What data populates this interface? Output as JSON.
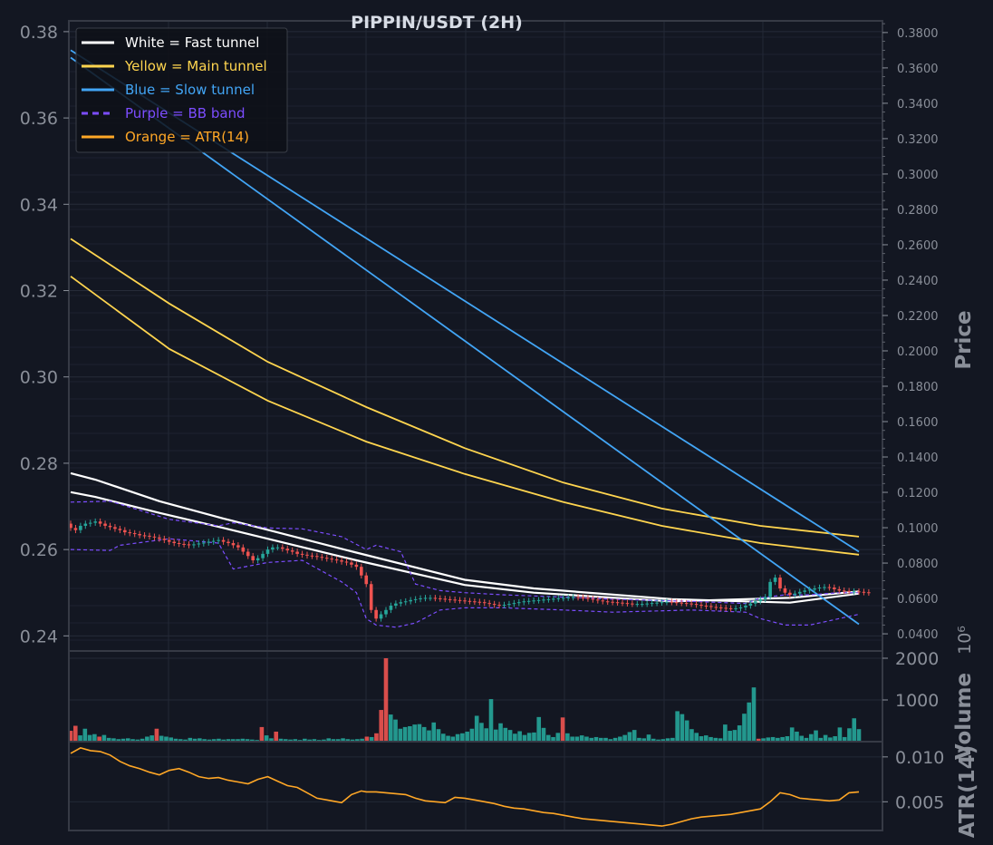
{
  "chart_data": [
    {
      "type": "line",
      "panel": "price",
      "title": "PIPPIN/USDT (2H)",
      "ylabel": "Price",
      "ylim": [
        0.2365,
        0.3825
      ],
      "y_ticks": [
        0.24,
        0.26,
        0.28,
        0.3,
        0.32,
        0.34,
        0.36,
        0.38
      ],
      "y_tick_labels": [
        "0.24",
        "0.26",
        "0.28",
        "0.30",
        "0.32",
        "0.34",
        "0.36",
        "0.38"
      ],
      "right_ylim": [
        0.0303,
        0.3866
      ],
      "right_ticks": [
        0.04,
        0.06,
        0.08,
        0.1,
        0.12,
        0.14,
        0.16,
        0.18,
        0.2,
        0.22,
        0.24,
        0.26,
        0.28,
        0.3,
        0.32,
        0.34,
        0.36,
        0.38
      ],
      "right_tick_labels": [
        "0.0400",
        "0.0600",
        "0.0800",
        "0.1000",
        "0.1200",
        "0.1400",
        "0.1600",
        "0.1800",
        "0.2000",
        "0.2200",
        "0.2400",
        "0.2600",
        "0.2800",
        "0.3000",
        "0.3200",
        "0.3400",
        "0.3600",
        "0.3800"
      ],
      "x_range": [
        0,
        160
      ],
      "legend": {
        "position": "top-left",
        "entries": [
          {
            "label": "White = Fast tunnel",
            "color": "#ffffff",
            "dash": false
          },
          {
            "label": "Yellow = Main tunnel",
            "color": "#ffd54f",
            "dash": false
          },
          {
            "label": "Blue = Slow tunnel",
            "color": "#42a5f5",
            "dash": false
          },
          {
            "label": "Purple = BB band",
            "color": "#7c4dff",
            "dash": true
          },
          {
            "label": "Orange = ATR(14)",
            "color": "#ffa726",
            "dash": false
          }
        ]
      },
      "series": [
        {
          "name": "Fast tunnel upper",
          "color": "#ffffff",
          "x": [
            0,
            5,
            18,
            31,
            58,
            80,
            94,
            122,
            146,
            160
          ],
          "values": [
            0.2777,
            0.2762,
            0.2712,
            0.2672,
            0.2593,
            0.253,
            0.251,
            0.2485,
            0.2477,
            0.2498
          ]
        },
        {
          "name": "Fast tunnel lower",
          "color": "#ffffff",
          "x": [
            0,
            5,
            18,
            31,
            58,
            80,
            94,
            122,
            146,
            160
          ],
          "values": [
            0.2733,
            0.2722,
            0.2685,
            0.265,
            0.2575,
            0.2518,
            0.25,
            0.248,
            0.2488,
            0.2503
          ]
        },
        {
          "name": "Main tunnel upper",
          "color": "#ffd54f",
          "x": [
            0,
            20,
            40,
            60,
            80,
            100,
            120,
            140,
            160
          ],
          "values": [
            0.332,
            0.317,
            0.3035,
            0.293,
            0.2835,
            0.2755,
            0.2695,
            0.2655,
            0.263
          ]
        },
        {
          "name": "Main tunnel lower",
          "color": "#ffd54f",
          "x": [
            0,
            20,
            40,
            60,
            80,
            100,
            120,
            140,
            160
          ],
          "values": [
            0.3233,
            0.3065,
            0.2945,
            0.285,
            0.2775,
            0.271,
            0.2655,
            0.2615,
            0.2588
          ]
        },
        {
          "name": "Slow tunnel upper",
          "color": "#42a5f5",
          "x": [
            0,
            160
          ],
          "values": [
            0.3757,
            0.2595
          ]
        },
        {
          "name": "Slow tunnel lower",
          "color": "#42a5f5",
          "x": [
            0,
            160
          ],
          "values": [
            0.374,
            0.2427
          ]
        },
        {
          "name": "BB upper",
          "color": "#7c4dff",
          "x": [
            0,
            8,
            20,
            30,
            33,
            40,
            47,
            55,
            60,
            62,
            67,
            70,
            75,
            80,
            88,
            100,
            110,
            126,
            137,
            140,
            145,
            150,
            156,
            160
          ],
          "values": [
            0.271,
            0.2712,
            0.267,
            0.2655,
            0.2662,
            0.265,
            0.2648,
            0.263,
            0.26,
            0.261,
            0.2595,
            0.252,
            0.2505,
            0.25,
            0.2495,
            0.249,
            0.2485,
            0.248,
            0.2475,
            0.2488,
            0.2495,
            0.2495,
            0.25,
            0.25
          ]
        },
        {
          "name": "BB lower",
          "color": "#7c4dff",
          "x": [
            0,
            8,
            10,
            20,
            30,
            33,
            40,
            47,
            55,
            58,
            60,
            62,
            66,
            70,
            75,
            80,
            88,
            100,
            110,
            126,
            137,
            140,
            145,
            150,
            156,
            160
          ],
          "values": [
            0.26,
            0.2598,
            0.261,
            0.2625,
            0.2615,
            0.2555,
            0.257,
            0.2575,
            0.2525,
            0.25,
            0.244,
            0.2425,
            0.242,
            0.243,
            0.246,
            0.2465,
            0.2465,
            0.246,
            0.2455,
            0.246,
            0.2455,
            0.244,
            0.2425,
            0.2425,
            0.244,
            0.245
          ]
        }
      ],
      "candles": {
        "up_color": "#26a69a",
        "down_color": "#ef5350",
        "close": [
          0.265,
          0.2645,
          0.2655,
          0.266,
          0.2662,
          0.2665,
          0.266,
          0.2655,
          0.2652,
          0.2648,
          0.2645,
          0.264,
          0.2638,
          0.2636,
          0.2633,
          0.2632,
          0.263,
          0.2628,
          0.2625,
          0.2622,
          0.2618,
          0.2615,
          0.2613,
          0.2612,
          0.261,
          0.2612,
          0.2614,
          0.2616,
          0.2618,
          0.262,
          0.2622,
          0.2618,
          0.2615,
          0.261,
          0.2605,
          0.2595,
          0.2585,
          0.2575,
          0.258,
          0.259,
          0.26,
          0.2605,
          0.2605,
          0.2602,
          0.2598,
          0.2595,
          0.259,
          0.2588,
          0.2586,
          0.2585,
          0.2583,
          0.2581,
          0.2579,
          0.2577,
          0.2575,
          0.2572,
          0.257,
          0.2565,
          0.256,
          0.254,
          0.252,
          0.246,
          0.244,
          0.245,
          0.246,
          0.247,
          0.2475,
          0.2478,
          0.248,
          0.2483,
          0.2485,
          0.2487,
          0.2488,
          0.2488,
          0.2487,
          0.2486,
          0.2485,
          0.2484,
          0.2483,
          0.2482,
          0.2481,
          0.248,
          0.2479,
          0.2478,
          0.2476,
          0.2474,
          0.2472,
          0.2471,
          0.2472,
          0.2474,
          0.2476,
          0.2478,
          0.248,
          0.2481,
          0.2482,
          0.2483,
          0.2484,
          0.2485,
          0.2486,
          0.2487,
          0.2488,
          0.2489,
          0.249,
          0.2489,
          0.2488,
          0.2486,
          0.2484,
          0.2482,
          0.248,
          0.2479,
          0.2478,
          0.2477,
          0.2476,
          0.2475,
          0.2474,
          0.2474,
          0.2474,
          0.2475,
          0.2476,
          0.2477,
          0.2478,
          0.2479,
          0.2478,
          0.2477,
          0.2476,
          0.2475,
          0.2474,
          0.2472,
          0.247,
          0.2469,
          0.2467,
          0.2466,
          0.2465,
          0.2464,
          0.2463,
          0.2464,
          0.2466,
          0.247,
          0.2475,
          0.248,
          0.2485,
          0.249,
          0.2525,
          0.2535,
          0.251,
          0.25,
          0.2495,
          0.2498,
          0.2502,
          0.2505,
          0.2507,
          0.251,
          0.2512,
          0.2513,
          0.2512,
          0.2508,
          0.2505,
          0.2504,
          0.2503,
          0.2503,
          0.2502,
          0.2501,
          0.25
        ]
      }
    },
    {
      "type": "bar",
      "panel": "volume",
      "ylabel": "Volume",
      "scale_label": "10⁶",
      "ylim": [
        0,
        2000
      ],
      "y_ticks": [
        1000,
        2000
      ],
      "y_tick_labels": [
        "1000",
        "2000"
      ],
      "values": [
        260,
        380,
        150,
        310,
        160,
        180,
        120,
        160,
        90,
        80,
        60,
        70,
        80,
        60,
        50,
        70,
        120,
        150,
        310,
        140,
        120,
        100,
        70,
        60,
        50,
        90,
        70,
        80,
        60,
        50,
        60,
        70,
        50,
        60,
        60,
        60,
        70,
        60,
        50,
        40,
        350,
        150,
        80,
        240,
        70,
        60,
        50,
        60,
        40,
        70,
        50,
        60,
        40,
        50,
        80,
        60,
        60,
        80,
        60,
        50,
        60,
        70,
        120,
        110,
        200,
        760,
        2000,
        650,
        530,
        310,
        350,
        370,
        410,
        420,
        350,
        270,
        460,
        300,
        190,
        140,
        120,
        180,
        200,
        240,
        310,
        620,
        450,
        320,
        1020,
        290,
        440,
        330,
        280,
        190,
        250,
        160,
        210,
        220,
        590,
        330,
        160,
        110,
        210,
        580,
        200,
        120,
        120,
        150,
        120,
        90,
        110,
        90,
        90,
        60,
        90,
        120,
        160,
        230,
        280,
        90,
        80,
        170,
        70,
        50,
        60,
        80,
        90,
        730,
        660,
        510,
        300,
        210,
        130,
        150,
        110,
        90,
        80,
        410,
        260,
        280,
        390,
        670,
        940,
        1300,
        70,
        80,
        100,
        110,
        90,
        110,
        130,
        340,
        240,
        140,
        90,
        180,
        270,
        90,
        160,
        100,
        130,
        340,
        110,
        320,
        560,
        300
      ],
      "colors": [
        "down",
        "down",
        "up",
        "up",
        "up",
        "up",
        "down",
        "up",
        "up",
        "up",
        "up",
        "up",
        "up",
        "up",
        "up",
        "up",
        "up",
        "up",
        "down",
        "up",
        "up",
        "up",
        "up",
        "up",
        "up",
        "up",
        "up",
        "up",
        "up",
        "up",
        "up",
        "up",
        "up",
        "up",
        "up",
        "up",
        "up",
        "up",
        "up",
        "up",
        "down",
        "up",
        "up",
        "down",
        "up",
        "up",
        "up",
        "up",
        "up",
        "up",
        "up",
        "up",
        "up",
        "up",
        "up",
        "up",
        "up",
        "up",
        "up",
        "up",
        "up",
        "up",
        "down",
        "up",
        "down",
        "down",
        "down",
        "up",
        "up",
        "up",
        "up",
        "up",
        "up",
        "up",
        "up",
        "up",
        "up",
        "up",
        "up",
        "up",
        "up",
        "up",
        "up",
        "up",
        "up",
        "up",
        "up",
        "up",
        "up",
        "up",
        "up",
        "up",
        "up",
        "up",
        "up",
        "up",
        "up",
        "up",
        "up",
        "up",
        "up",
        "up",
        "up",
        "down",
        "up",
        "up",
        "up",
        "up",
        "up",
        "up",
        "up",
        "up",
        "up",
        "up",
        "up",
        "up",
        "up",
        "up",
        "up",
        "up",
        "up",
        "up",
        "up",
        "up",
        "up",
        "up",
        "up",
        "up",
        "up",
        "up",
        "up",
        "up",
        "up",
        "up",
        "up",
        "up",
        "up",
        "up",
        "up",
        "up",
        "up",
        "up",
        "up",
        "up",
        "down",
        "up",
        "up",
        "up",
        "up",
        "up",
        "up",
        "up",
        "up",
        "up",
        "up",
        "up",
        "up",
        "up",
        "up",
        "up",
        "up",
        "up",
        "up",
        "up",
        "up",
        "up",
        "up",
        "up",
        "up",
        "down",
        "down",
        "up"
      ]
    },
    {
      "type": "line",
      "panel": "atr",
      "ylabel": "ATR(14)",
      "ylim": [
        0.0018,
        0.0117
      ],
      "y_ticks": [
        0.005,
        0.01
      ],
      "y_tick_labels": [
        "0.005",
        "0.010"
      ],
      "series": [
        {
          "name": "ATR(14)",
          "color": "#ffa726",
          "x": [
            0,
            2,
            4,
            6,
            8,
            10,
            12,
            14,
            16,
            18,
            20,
            22,
            24,
            26,
            28,
            30,
            32,
            34,
            36,
            38,
            40,
            42,
            44,
            46,
            48,
            50,
            52,
            54,
            55,
            57,
            59,
            60,
            62,
            64,
            66,
            68,
            70,
            72,
            74,
            76,
            78,
            80,
            82,
            84,
            86,
            88,
            90,
            92,
            94,
            96,
            98,
            100,
            102,
            104,
            106,
            108,
            110,
            112,
            114,
            116,
            118,
            120,
            122,
            124,
            126,
            128,
            130,
            132,
            134,
            136,
            138,
            140,
            142,
            144,
            146,
            148,
            150,
            152,
            154,
            156,
            158,
            160
          ],
          "values": [
            0.0104,
            0.011,
            0.0107,
            0.0106,
            0.0102,
            0.0095,
            0.009,
            0.0087,
            0.0083,
            0.008,
            0.0085,
            0.0087,
            0.0083,
            0.0078,
            0.0076,
            0.0077,
            0.0074,
            0.0072,
            0.007,
            0.0075,
            0.0078,
            0.0073,
            0.0068,
            0.0066,
            0.006,
            0.0054,
            0.0052,
            0.005,
            0.0049,
            0.0058,
            0.0062,
            0.0061,
            0.0061,
            0.006,
            0.0059,
            0.0058,
            0.0054,
            0.0051,
            0.005,
            0.0049,
            0.0055,
            0.0054,
            0.0052,
            0.005,
            0.0048,
            0.0045,
            0.0043,
            0.0042,
            0.004,
            0.0038,
            0.0037,
            0.0035,
            0.0033,
            0.0031,
            0.003,
            0.0029,
            0.0028,
            0.0027,
            0.0026,
            0.0025,
            0.0024,
            0.0023,
            0.0025,
            0.0028,
            0.0031,
            0.0033,
            0.0034,
            0.0035,
            0.0036,
            0.0038,
            0.004,
            0.0042,
            0.005,
            0.006,
            0.0058,
            0.0054,
            0.0053,
            0.0052,
            0.0051,
            0.0052,
            0.006,
            0.0061
          ]
        }
      ]
    }
  ]
}
